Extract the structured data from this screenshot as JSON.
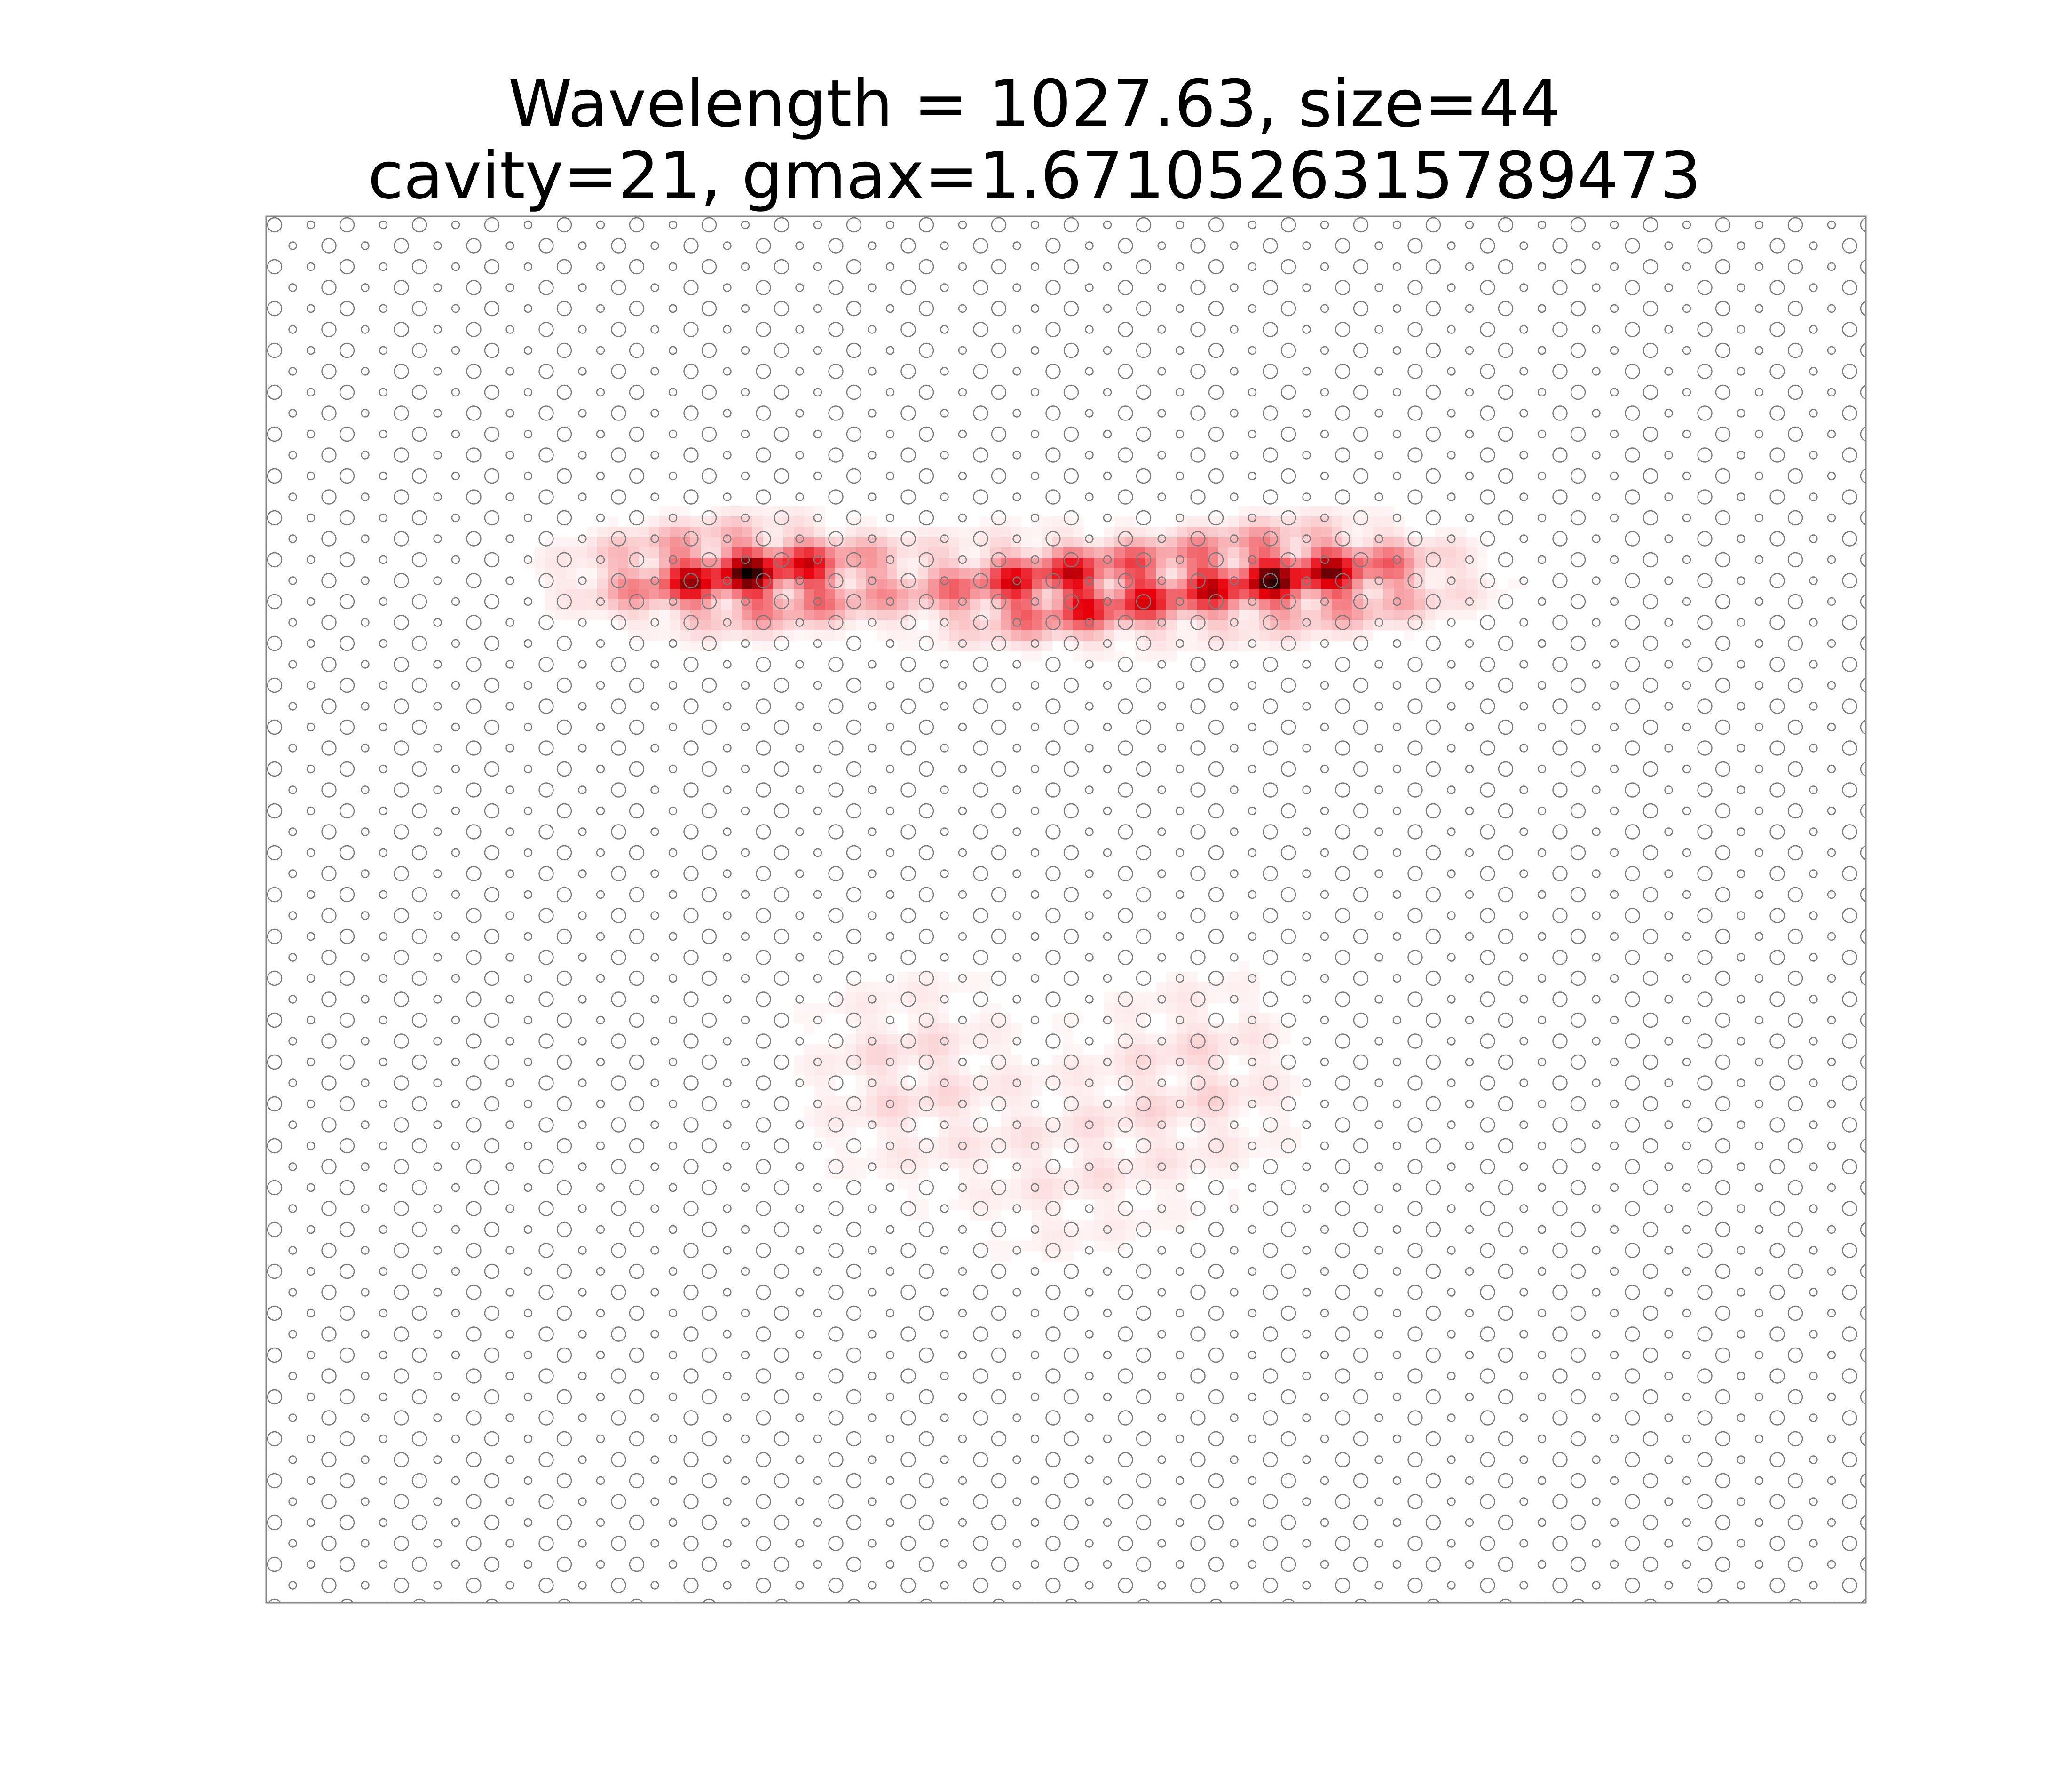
{
  "figure": {
    "title_lines": [
      "Wavelength = 1027.63, size=44",
      "cavity=21, gmax=1.6710526315789473"
    ]
  },
  "chart_data": {
    "type": "heatmap",
    "title": "Wavelength = 1027.63, size=44\ncavity=21, gmax=1.6710526315789473",
    "xlabel": "",
    "ylabel": "",
    "axes_visible": false,
    "grid": false,
    "colormap": "white-to-red-to-black",
    "lattice": {
      "kind": "hexagonal hole lattice with alternating large/small holes",
      "size": 44,
      "cavity": 21,
      "hole_color": "#7a7a7a"
    },
    "intensity_regions": [
      {
        "name": "left-lobe",
        "x": 0.3,
        "y": 0.26,
        "peak": 1.0
      },
      {
        "name": "center-lobe",
        "x": 0.5,
        "y": 0.27,
        "peak": 0.9
      },
      {
        "name": "right-lobe",
        "x": 0.64,
        "y": 0.26,
        "peak": 0.95
      },
      {
        "name": "lower-left-arm",
        "x": 0.4,
        "y": 0.62,
        "peak": 0.12
      },
      {
        "name": "lower-right-arm",
        "x": 0.58,
        "y": 0.62,
        "peak": 0.12
      },
      {
        "name": "bottom-tip",
        "x": 0.5,
        "y": 0.69,
        "peak": 0.08
      }
    ],
    "colors": {
      "low": "#ffffff",
      "mid": "#e8000b",
      "high": "#000000",
      "frame": "#888888"
    }
  }
}
